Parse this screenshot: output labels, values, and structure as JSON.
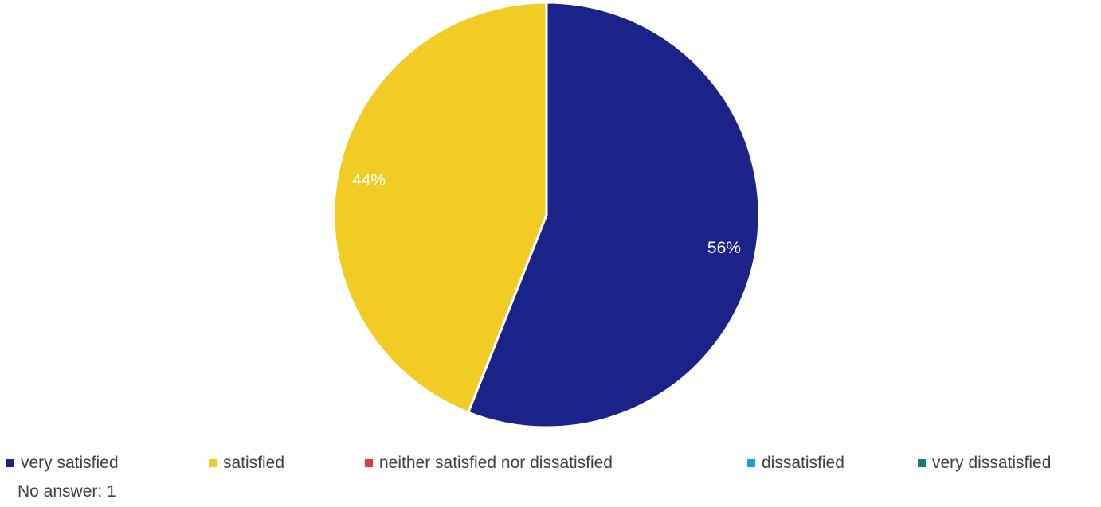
{
  "chart_data": {
    "type": "pie",
    "categories": [
      "very satisfied",
      "satisfied",
      "neither satisfied nor dissatisfied",
      "dissatisfied",
      "very dissatisfied"
    ],
    "values": [
      56,
      44,
      0,
      0,
      0
    ],
    "value_labels": [
      "56%",
      "44%",
      "",
      "",
      ""
    ],
    "colors": [
      "#1B2389",
      "#F0CC24",
      "#EE3340",
      "#15A0E0",
      "#0E8075"
    ],
    "legend_position": "bottom",
    "note": "No answer: 1"
  }
}
